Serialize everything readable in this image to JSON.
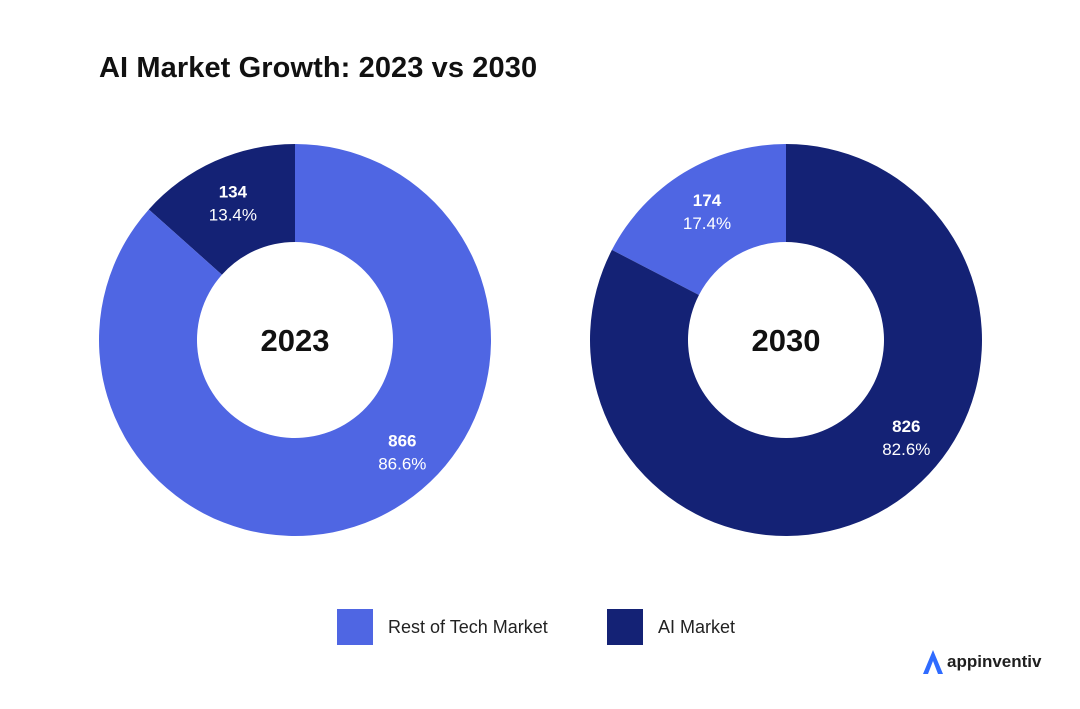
{
  "chart_data": {
    "title": "AI Market Growth: 2023 vs 2030",
    "type": "pie",
    "donut": true,
    "legend_position": "bottom-center",
    "legend": [
      {
        "name": "Rest of Tech Market",
        "color": "#4F66E3"
      },
      {
        "name": "AI Market",
        "color": "#142275"
      }
    ],
    "charts": [
      {
        "center_label": "2023",
        "slices": [
          {
            "name": "AI Market",
            "value": 134,
            "value_label": "134",
            "percent_label": "13.4%",
            "color": "#142275"
          },
          {
            "name": "Rest of Tech Market",
            "value": 866,
            "value_label": "866",
            "percent_label": "86.6%",
            "color": "#4F66E3"
          }
        ]
      },
      {
        "center_label": "2030",
        "slices": [
          {
            "name": "Rest of Tech Market",
            "value": 174,
            "value_label": "174",
            "percent_label": "17.4%",
            "color": "#4F66E3"
          },
          {
            "name": "AI Market",
            "value": 826,
            "value_label": "826",
            "percent_label": "82.6%",
            "color": "#142275"
          }
        ]
      }
    ]
  },
  "brand": {
    "name": "appinventiv",
    "logo_icon": "triangle-a-logo",
    "logo_color": "#2F6BFF"
  }
}
